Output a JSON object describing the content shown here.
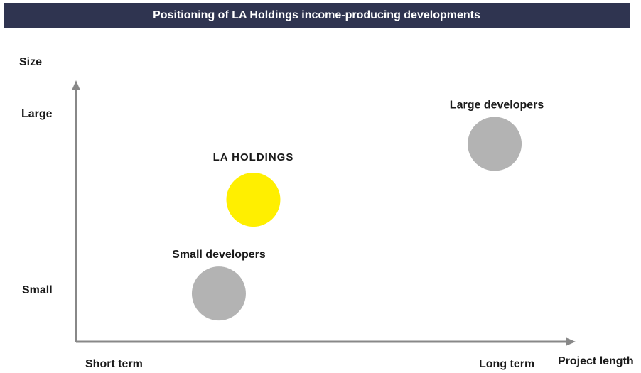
{
  "header": {
    "title": "Positioning of LA Holdings income-producing developments",
    "background_color": "#2f3450"
  },
  "chart_data": {
    "type": "scatter",
    "title": "Positioning of LA Holdings income-producing developments",
    "xlabel": "Project length",
    "ylabel": "Size",
    "x_tick_labels": [
      "Short term",
      "Long term"
    ],
    "y_tick_labels": [
      "Small",
      "Large"
    ],
    "xlim": [
      0,
      1
    ],
    "ylim": [
      0,
      1
    ],
    "grid": false,
    "legend": "none",
    "axis_color": "#888888",
    "points": [
      {
        "label": "LA HOLDINGS",
        "x": 0.36,
        "y": 0.56,
        "color": "#ffef00"
      },
      {
        "label": "Large developers",
        "x": 0.85,
        "y": 0.78,
        "color": "#b3b3b3"
      },
      {
        "label": "Small developers",
        "x": 0.29,
        "y": 0.19,
        "color": "#b3b3b3"
      }
    ]
  }
}
